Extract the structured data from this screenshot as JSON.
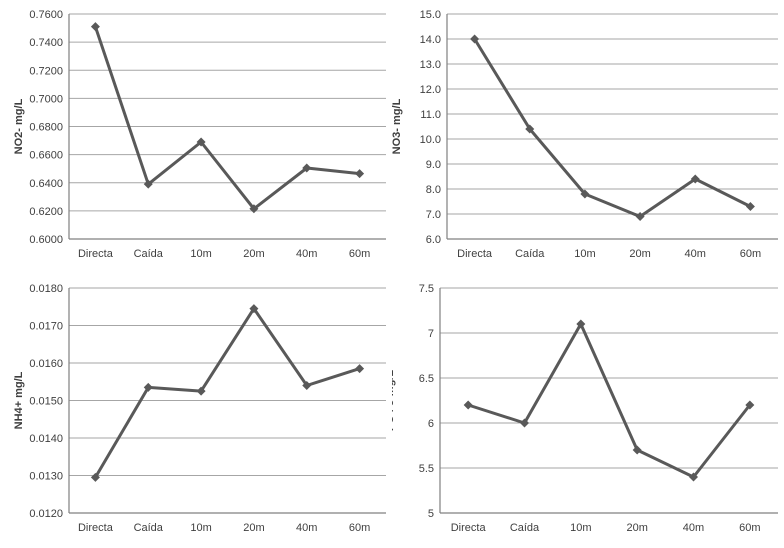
{
  "style": {
    "line_color": "#595959",
    "marker_color": "#595959",
    "grid_color": "#a6a6a6",
    "axis_color": "#808080",
    "text_color": "#3f3f3f",
    "background": "#ffffff"
  },
  "chart_data": [
    {
      "type": "line",
      "title": "",
      "xlabel": "",
      "ylabel": "NO2- mg/L",
      "categories": [
        "Directa",
        "Caída",
        "10m",
        "20m",
        "40m",
        "60m"
      ],
      "values": [
        0.751,
        0.639,
        0.669,
        0.6215,
        0.6505,
        0.6465
      ],
      "ylim": [
        0.6,
        0.76
      ],
      "yticks": [
        "0.7600",
        "0.7400",
        "0.7200",
        "0.7000",
        "0.6800",
        "0.6600",
        "0.6400",
        "0.6200",
        "0.6000"
      ],
      "grid": true,
      "legend": "none",
      "marker": "diamond"
    },
    {
      "type": "line",
      "title": "",
      "xlabel": "",
      "ylabel": "NO3- mg/L",
      "categories": [
        "Directa",
        "Caída",
        "10m",
        "20m",
        "40m",
        "60m"
      ],
      "values": [
        14.0,
        10.4,
        7.8,
        6.9,
        8.4,
        7.3
      ],
      "ylim": [
        6.0,
        15.0
      ],
      "yticks": [
        "15.0",
        "14.0",
        "13.0",
        "12.0",
        "11.0",
        "10.0",
        "9.0",
        "8.0",
        "7.0",
        "6.0"
      ],
      "grid": true,
      "legend": "none",
      "marker": "diamond"
    },
    {
      "type": "line",
      "title": "",
      "xlabel": "",
      "ylabel": "NH4+ mg/L",
      "categories": [
        "Directa",
        "Caída",
        "10m",
        "20m",
        "40m",
        "60m"
      ],
      "values": [
        0.01295,
        0.01535,
        0.01525,
        0.01745,
        0.0154,
        0.01585
      ],
      "ylim": [
        0.012,
        0.018
      ],
      "yticks": [
        "0.0180",
        "0.0170",
        "0.0160",
        "0.0150",
        "0.0140",
        "0.0130",
        "0.0120"
      ],
      "grid": true,
      "legend": "none",
      "marker": "diamond"
    },
    {
      "type": "line",
      "title": "",
      "xlabel": "",
      "ylabel": "PO4 3-mg/L",
      "categories": [
        "Directa",
        "Caída",
        "10m",
        "20m",
        "40m",
        "60m"
      ],
      "values": [
        6.2,
        6.0,
        7.1,
        5.7,
        5.4,
        6.2
      ],
      "ylim": [
        5.0,
        7.5
      ],
      "yticks": [
        "7.5",
        "7",
        "6.5",
        "6",
        "5.5",
        "5"
      ],
      "grid": true,
      "legend": "none",
      "marker": "diamond"
    }
  ]
}
